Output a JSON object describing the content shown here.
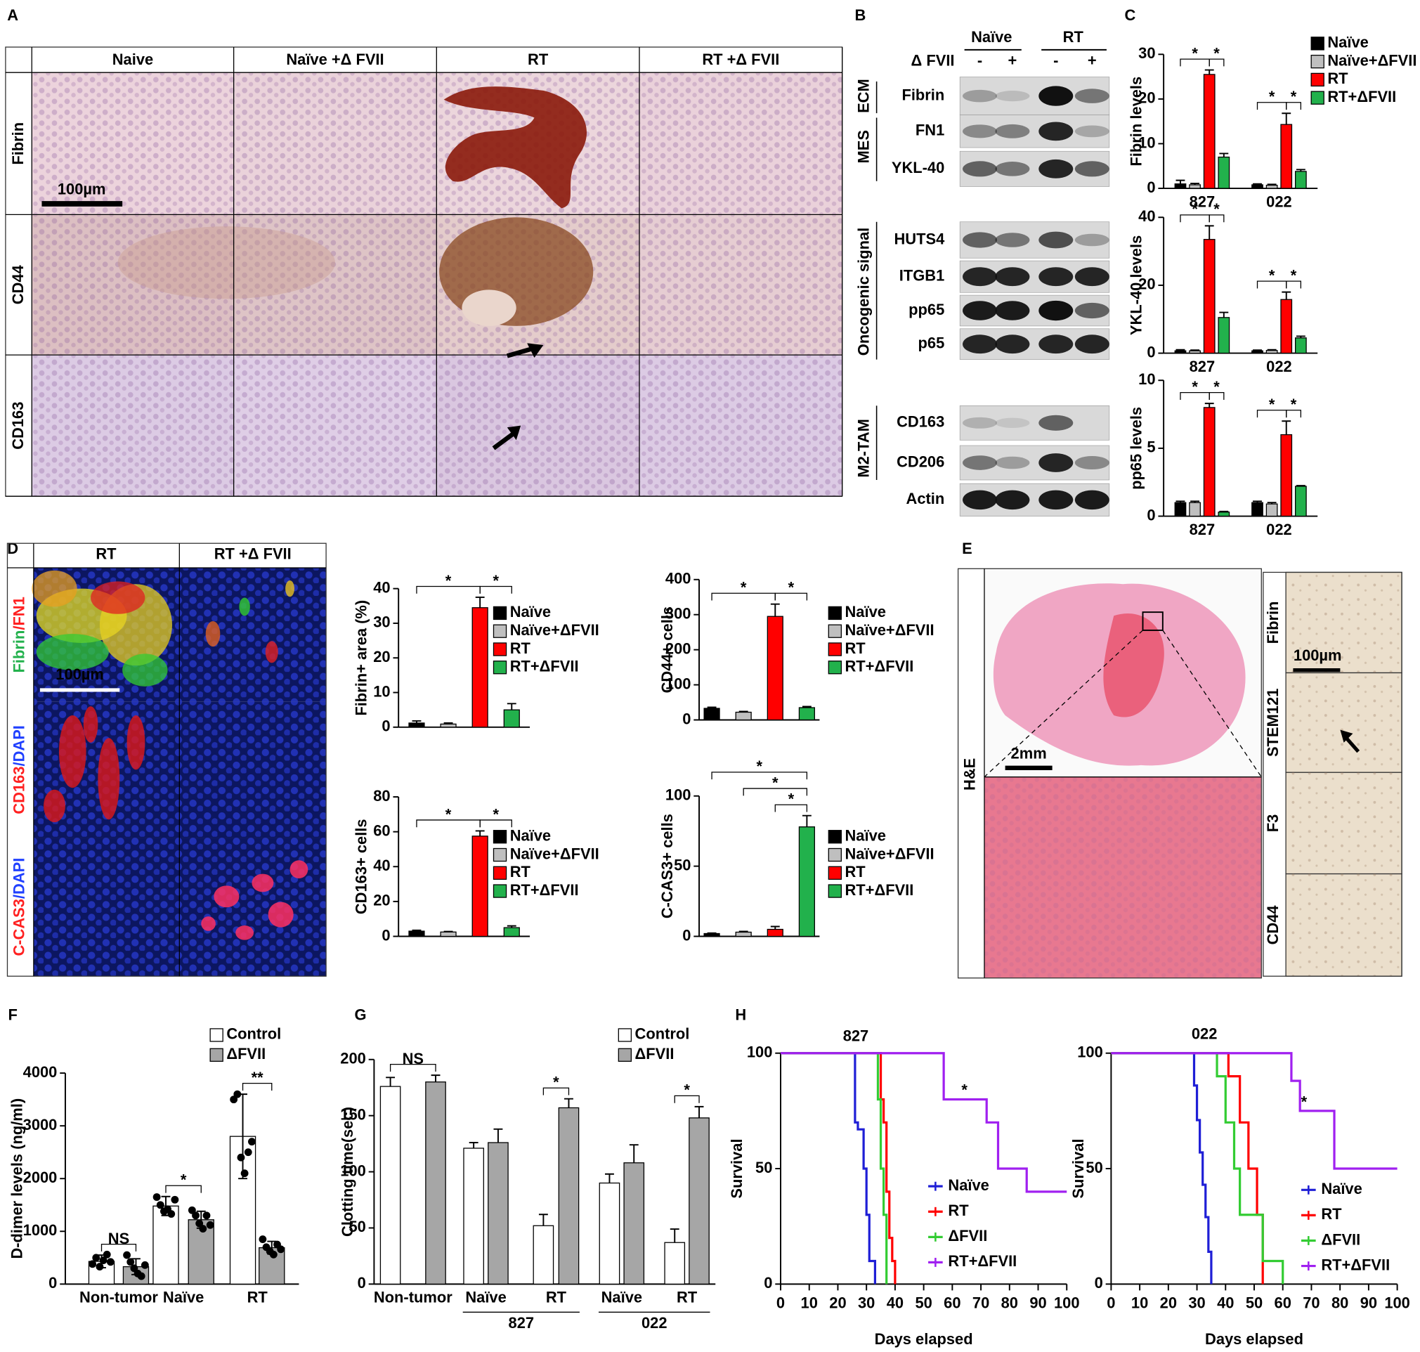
{
  "letters": [
    "A",
    "B",
    "C",
    "D",
    "E",
    "F",
    "G",
    "H"
  ],
  "panel_a": {
    "columns": [
      "Naive",
      "Naïve +Δ FVII",
      "RT",
      "RT +Δ FVII"
    ],
    "rows": [
      "Fibrin",
      "CD44",
      "CD163"
    ],
    "scale_bar": "100µm"
  },
  "panel_b": {
    "groups": [
      "Naïve",
      "RT"
    ],
    "treatment": "Δ FVII",
    "lanes": [
      "-",
      "+",
      "-",
      "+"
    ],
    "categories": [
      "ECM",
      "MES",
      "Oncogenic signal",
      "M2-TAM"
    ],
    "blots": [
      "Fibrin",
      "FN1",
      "YKL-40",
      "HUTS4",
      "ITGB1",
      "pp65",
      "p65",
      "CD163",
      "CD206",
      "Actin"
    ]
  },
  "panel_d": {
    "columns": [
      "RT",
      "RT +Δ FVII"
    ],
    "rows": [
      [
        "Fibrin",
        "/FN1"
      ],
      [
        "CD163",
        "/DAPI"
      ],
      [
        "C-CAS3",
        "/DAPI"
      ]
    ],
    "scale_bar": "100µm"
  },
  "panel_e": {
    "left": "H&E",
    "scale_bar_left": "2mm",
    "rows": [
      "Fibrin",
      "STEM121",
      "F3",
      "CD44"
    ],
    "scale_bar_right": "100µm"
  },
  "chart_data": [
    {
      "type": "bar",
      "y_label": "Fibrin levels",
      "categories": [
        "827",
        "022"
      ],
      "series": [
        {
          "name": "Naïve",
          "color": "#000000",
          "values": [
            1,
            0.8
          ],
          "errors": [
            0.8,
            0.2
          ]
        },
        {
          "name": "Naïve+ΔFVII",
          "color": "#bfbfbf",
          "values": [
            0.8,
            0.7
          ],
          "errors": [
            0.3,
            0.2
          ]
        },
        {
          "name": "RT",
          "color": "#ff0000",
          "values": [
            25.5,
            14.3
          ],
          "errors": [
            1,
            2.5
          ]
        },
        {
          "name": "RT+ΔFVII",
          "color": "#22b14c",
          "values": [
            7,
            3.8
          ],
          "errors": [
            0.8,
            0.4
          ]
        }
      ],
      "ylim": [
        0,
        30
      ],
      "yticks": [
        0,
        10,
        20,
        30
      ],
      "annotations": [
        "*",
        "*",
        "*",
        "*"
      ]
    },
    {
      "type": "bar",
      "y_label": "YKL-40 levels",
      "categories": [
        "827",
        "022"
      ],
      "series": [
        {
          "color": "#000000",
          "values": [
            0.7,
            0.7
          ],
          "errors": [
            0.3,
            0.2
          ]
        },
        {
          "color": "#bfbfbf",
          "values": [
            0.7,
            0.8
          ],
          "errors": [
            0.2,
            0.2
          ]
        },
        {
          "color": "#ff0000",
          "values": [
            33.5,
            15.8
          ],
          "errors": [
            4,
            2.2
          ]
        },
        {
          "color": "#22b14c",
          "values": [
            10.5,
            4.5
          ],
          "errors": [
            1.5,
            0.5
          ]
        }
      ],
      "ylim": [
        0,
        40
      ],
      "yticks": [
        0,
        20,
        40
      ],
      "annotations": [
        "*",
        "*",
        "*",
        "*"
      ]
    },
    {
      "type": "bar",
      "y_label": "pp65 levels",
      "categories": [
        "827",
        "022"
      ],
      "series": [
        {
          "color": "#000000",
          "values": [
            1,
            1
          ],
          "errors": [
            0.1,
            0.1
          ]
        },
        {
          "color": "#bfbfbf",
          "values": [
            1,
            0.9
          ],
          "errors": [
            0.1,
            0.1
          ]
        },
        {
          "color": "#ff0000",
          "values": [
            8,
            6
          ],
          "errors": [
            0.3,
            1
          ]
        },
        {
          "color": "#22b14c",
          "values": [
            0.3,
            2.2
          ],
          "errors": [
            0.05,
            0.05
          ]
        }
      ],
      "ylim": [
        0,
        10
      ],
      "yticks": [
        0,
        5,
        10
      ],
      "annotations": [
        "*",
        "*",
        "*",
        "*"
      ]
    },
    {
      "type": "bar",
      "y_label": "Fibrin+ area (%)",
      "categories": [
        null
      ],
      "series": [
        {
          "name": "Naïve",
          "color": "#000000",
          "values": [
            1.2
          ],
          "errors": [
            0.6
          ]
        },
        {
          "name": "Naïve+ΔFVII",
          "color": "#bfbfbf",
          "values": [
            0.9
          ],
          "errors": [
            0.3
          ]
        },
        {
          "name": "RT",
          "color": "#ff0000",
          "values": [
            34.5
          ],
          "errors": [
            3
          ]
        },
        {
          "name": "RT+ΔFVII",
          "color": "#22b14c",
          "values": [
            5
          ],
          "errors": [
            1.8
          ]
        }
      ],
      "ylim": [
        0,
        40
      ],
      "yticks": [
        0,
        10,
        20,
        30,
        40
      ],
      "annotations": [
        "*",
        "*"
      ]
    },
    {
      "type": "bar",
      "y_label": "CD44+ cells",
      "categories": [
        null
      ],
      "series": [
        {
          "name": "Naïve",
          "color": "#000000",
          "values": [
            33
          ],
          "errors": [
            3
          ]
        },
        {
          "name": "Naïve+ΔFVII",
          "color": "#bfbfbf",
          "values": [
            22
          ],
          "errors": [
            2
          ]
        },
        {
          "name": "RT",
          "color": "#ff0000",
          "values": [
            295
          ],
          "errors": [
            35
          ]
        },
        {
          "name": "RT+ΔFVII",
          "color": "#22b14c",
          "values": [
            35
          ],
          "errors": [
            3
          ]
        }
      ],
      "ylim": [
        0,
        400
      ],
      "yticks": [
        0,
        100,
        200,
        300,
        400
      ],
      "annotations": [
        "*",
        "*"
      ]
    },
    {
      "type": "bar",
      "y_label": "CD163+ cells",
      "categories": [
        null
      ],
      "series": [
        {
          "name": "Naïve",
          "color": "#000000",
          "values": [
            3
          ],
          "errors": [
            0.5
          ]
        },
        {
          "name": "Naïve+ΔFVII",
          "color": "#bfbfbf",
          "values": [
            2.5
          ],
          "errors": [
            0.3
          ]
        },
        {
          "name": "RT",
          "color": "#ff0000",
          "values": [
            57.5
          ],
          "errors": [
            3
          ]
        },
        {
          "name": "RT+ΔFVII",
          "color": "#22b14c",
          "values": [
            5
          ],
          "errors": [
            1
          ]
        }
      ],
      "ylim": [
        0,
        80
      ],
      "yticks": [
        0,
        20,
        40,
        60,
        80
      ],
      "annotations": [
        "*",
        "*"
      ]
    },
    {
      "type": "bar",
      "y_label": "C-CAS3+ cells",
      "categories": [
        null
      ],
      "series": [
        {
          "name": "Naïve",
          "color": "#000000",
          "values": [
            2
          ],
          "errors": [
            0.3
          ]
        },
        {
          "name": "Naïve+ΔFVII",
          "color": "#bfbfbf",
          "values": [
            3
          ],
          "errors": [
            0.5
          ]
        },
        {
          "name": "RT",
          "color": "#ff0000",
          "values": [
            5
          ],
          "errors": [
            2
          ]
        },
        {
          "name": "RT+ΔFVII",
          "color": "#22b14c",
          "values": [
            78
          ],
          "errors": [
            8
          ]
        }
      ],
      "ylim": [
        0,
        100
      ],
      "yticks": [
        0,
        50,
        100
      ],
      "annotations": [
        "*",
        "*",
        "*"
      ]
    },
    {
      "type": "bar",
      "y_label": "D-dimer levels (ng/ml)",
      "categories": [
        "Non-tumor",
        "Naïve",
        "RT"
      ],
      "series": [
        {
          "name": "Control",
          "color": "#ffffff",
          "values": [
            430,
            1480,
            2800
          ],
          "errors": [
            120,
            180,
            800
          ],
          "points": [
            [
              380,
              500,
              330,
              450,
              560,
              420
            ],
            [
              1650,
              1500,
              1380,
              1420,
              1330,
              1600
            ],
            [
              3500,
              3600,
              2400,
              2100,
              2500,
              2700
            ]
          ]
        },
        {
          "name": "ΔFVII",
          "color": "#a6a6a6",
          "values": [
            330,
            1220,
            690
          ],
          "errors": [
            150,
            160,
            120
          ],
          "points": [
            [
              550,
              420,
              300,
              200,
              150,
              360
            ],
            [
              1400,
              1300,
              1150,
              1050,
              1300,
              1120
            ],
            [
              850,
              700,
              620,
              560,
              750,
              660
            ]
          ]
        }
      ],
      "ylim": [
        0,
        4000
      ],
      "yticks": [
        0,
        1000,
        2000,
        3000,
        4000
      ],
      "annotations": [
        "NS",
        "*",
        "**"
      ]
    },
    {
      "type": "bar",
      "y_label": "Clotting time(sec)",
      "categories": [
        "Non-tumor",
        "Naïve",
        "RT",
        "Naïve",
        "RT"
      ],
      "group_labels": [
        "827",
        "022"
      ],
      "series": [
        {
          "name": "Control",
          "color": "#ffffff",
          "values": [
            176,
            121,
            52,
            90,
            37
          ],
          "errors": [
            8,
            5,
            10,
            8,
            12
          ]
        },
        {
          "name": "ΔFVII",
          "color": "#a6a6a6",
          "values": [
            180,
            126,
            157,
            108,
            148
          ],
          "errors": [
            6,
            12,
            8,
            16,
            10
          ]
        }
      ],
      "ylim": [
        0,
        200
      ],
      "yticks": [
        0,
        50,
        100,
        150,
        200
      ],
      "annotations": [
        "NS",
        "*",
        "*"
      ]
    },
    {
      "type": "survival",
      "subtitle": "827",
      "x_label": "Days elapsed",
      "y_label": "Survival",
      "xlim": [
        0,
        100
      ],
      "xticks": [
        0,
        10,
        20,
        30,
        40,
        50,
        60,
        70,
        80,
        90,
        100
      ],
      "ylim": [
        0,
        100
      ],
      "yticks": [
        0,
        50,
        100
      ],
      "series": [
        {
          "name": "Naïve",
          "color": "#1f1fd6",
          "x": [
            0,
            26,
            27,
            29,
            30,
            31,
            33
          ],
          "values": [
            100,
            70,
            67,
            50,
            30,
            10,
            0
          ]
        },
        {
          "name": "RT",
          "color": "#ff0000",
          "x": [
            0,
            35,
            36,
            37,
            38,
            39,
            40
          ],
          "values": [
            100,
            80,
            70,
            40,
            20,
            10,
            0
          ]
        },
        {
          "name": "ΔFVII",
          "color": "#33cc33",
          "x": [
            0,
            34,
            35,
            36,
            37
          ],
          "values": [
            100,
            80,
            50,
            30,
            0
          ]
        },
        {
          "name": "RT+ΔFVII",
          "color": "#a020f0",
          "x": [
            0,
            57,
            72,
            76,
            86,
            100
          ],
          "values": [
            100,
            80,
            70,
            50,
            40,
            40
          ]
        }
      ],
      "annotations": [
        "*"
      ]
    },
    {
      "type": "survival",
      "subtitle": "022",
      "x_label": "Days elapsed",
      "y_label": "Survival",
      "xlim": [
        0,
        100
      ],
      "xticks": [
        0,
        10,
        20,
        30,
        40,
        50,
        60,
        70,
        80,
        90,
        100
      ],
      "ylim": [
        0,
        100
      ],
      "yticks": [
        0,
        50,
        100
      ],
      "series": [
        {
          "name": "Naïve",
          "color": "#1f1fd6",
          "x": [
            0,
            29,
            30,
            31,
            32,
            33,
            34,
            35
          ],
          "values": [
            100,
            86,
            71,
            57,
            43,
            29,
            14,
            0
          ]
        },
        {
          "name": "RT",
          "color": "#ff0000",
          "x": [
            0,
            41,
            45,
            48,
            51,
            53
          ],
          "values": [
            100,
            90,
            70,
            50,
            30,
            0
          ]
        },
        {
          "name": "ΔFVII",
          "color": "#33cc33",
          "x": [
            0,
            37,
            40,
            43,
            45,
            53,
            60
          ],
          "values": [
            100,
            90,
            70,
            50,
            30,
            10,
            0
          ]
        },
        {
          "name": "RT+ΔFVII",
          "color": "#a020f0",
          "x": [
            0,
            63,
            66,
            78,
            100
          ],
          "values": [
            100,
            88,
            75,
            50,
            50
          ]
        }
      ],
      "annotations": [
        "*"
      ]
    }
  ]
}
